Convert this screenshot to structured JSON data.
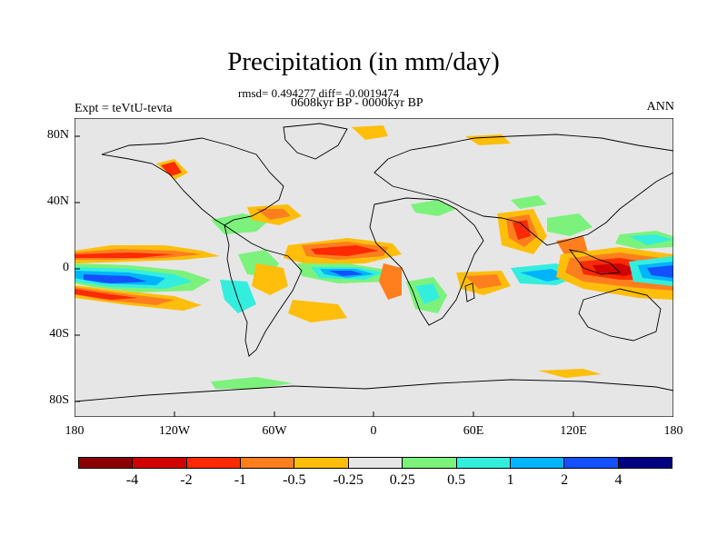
{
  "title": "Precipitation (in mm/day)",
  "stats": "rmsd= 0.494277 diff= -0.0019474",
  "period": "0608kyr BP - 0000kyr BP",
  "experiment": "Expt = teVtU-tevta",
  "season": "ANN",
  "y_ticks": [
    "80N",
    "40N",
    "0",
    "40S",
    "80S"
  ],
  "x_ticks": [
    "180",
    "120W",
    "60W",
    "0",
    "60E",
    "120E",
    "180"
  ],
  "colorbar": {
    "labels": [
      "-4",
      "-2",
      "-1",
      "-0.5",
      "-0.25",
      "0.25",
      "0.5",
      "1",
      "2",
      "4"
    ],
    "colors": [
      "#8b0000",
      "#d00000",
      "#ff2a00",
      "#ff7f1f",
      "#ffbe0a",
      "#e6e6e6",
      "#7cf27c",
      "#33eedd",
      "#00b4ff",
      "#1450ff",
      "#000080"
    ]
  },
  "background_color": "#e6e6e6"
}
